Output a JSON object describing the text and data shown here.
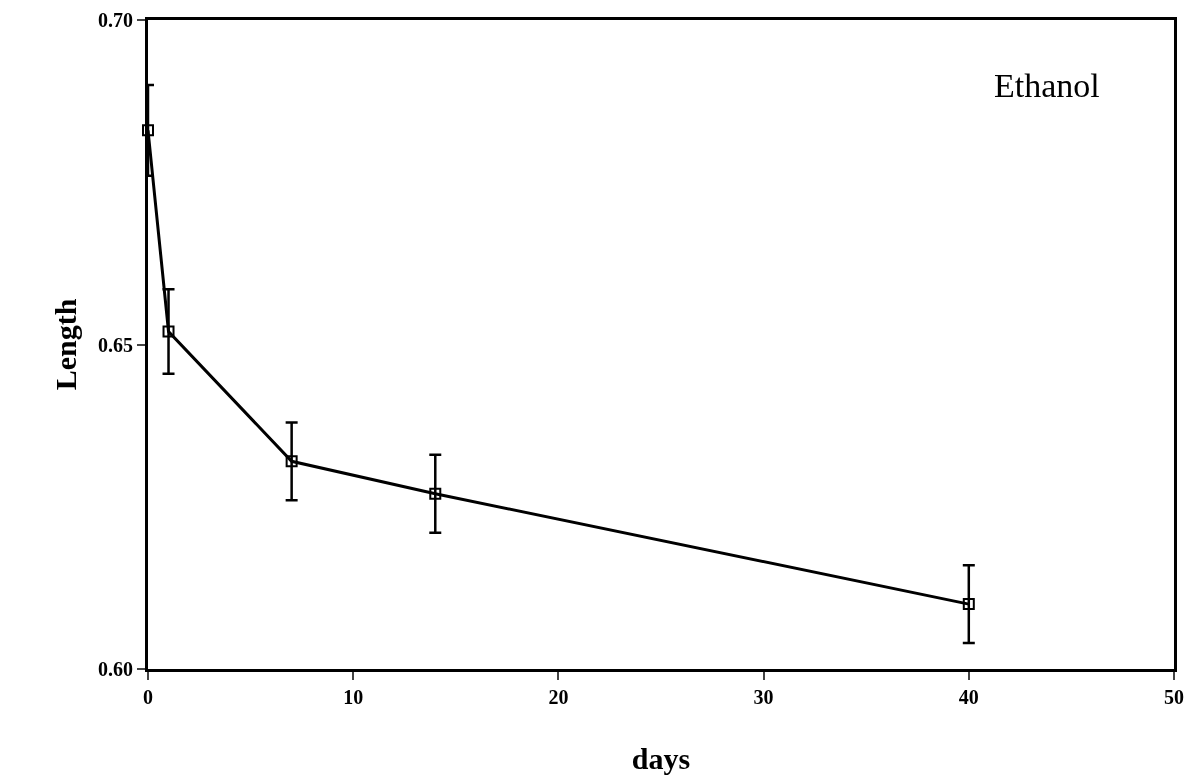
{
  "chart_data": {
    "type": "line",
    "xlabel": "days",
    "ylabel": "Length",
    "x": [
      0,
      1,
      7,
      14,
      40
    ],
    "values": [
      0.683,
      0.652,
      0.632,
      0.627,
      0.61
    ],
    "errors": [
      0.007,
      0.0065,
      0.006,
      0.006,
      0.006
    ],
    "color": "#000000",
    "marker": "square",
    "line_style": "solid",
    "grid": false,
    "legend": false,
    "xlim": [
      0,
      50
    ],
    "xticks": [
      0,
      10,
      20,
      30,
      40,
      50
    ],
    "ylim": [
      0.6,
      0.7
    ],
    "yticks": [
      {
        "value": 0.6,
        "label": "0.60"
      },
      {
        "value": 0.65,
        "label": "0.65"
      },
      {
        "value": 0.7,
        "label": "0.70"
      }
    ],
    "annotations": [
      "Ethanol"
    ]
  }
}
